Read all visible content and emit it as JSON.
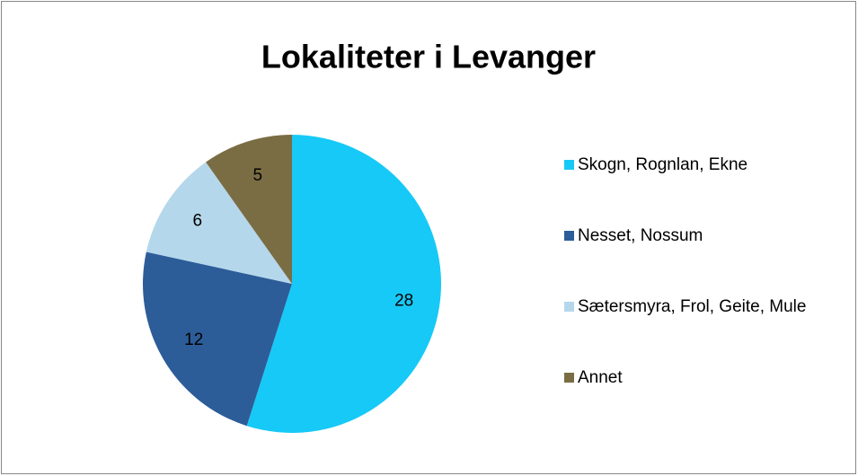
{
  "chart_data": {
    "type": "pie",
    "title": "Lokaliteter i Levanger",
    "categories": [
      "Skogn, Rognlan, Ekne",
      "Nesset, Nossum",
      "Sætersmyra, Frol, Geite, Mule",
      "Annet"
    ],
    "values": [
      28,
      12,
      6,
      5
    ],
    "colors": [
      "#17c9f7",
      "#2c5d99",
      "#b4d7eb",
      "#7a6d44"
    ]
  }
}
